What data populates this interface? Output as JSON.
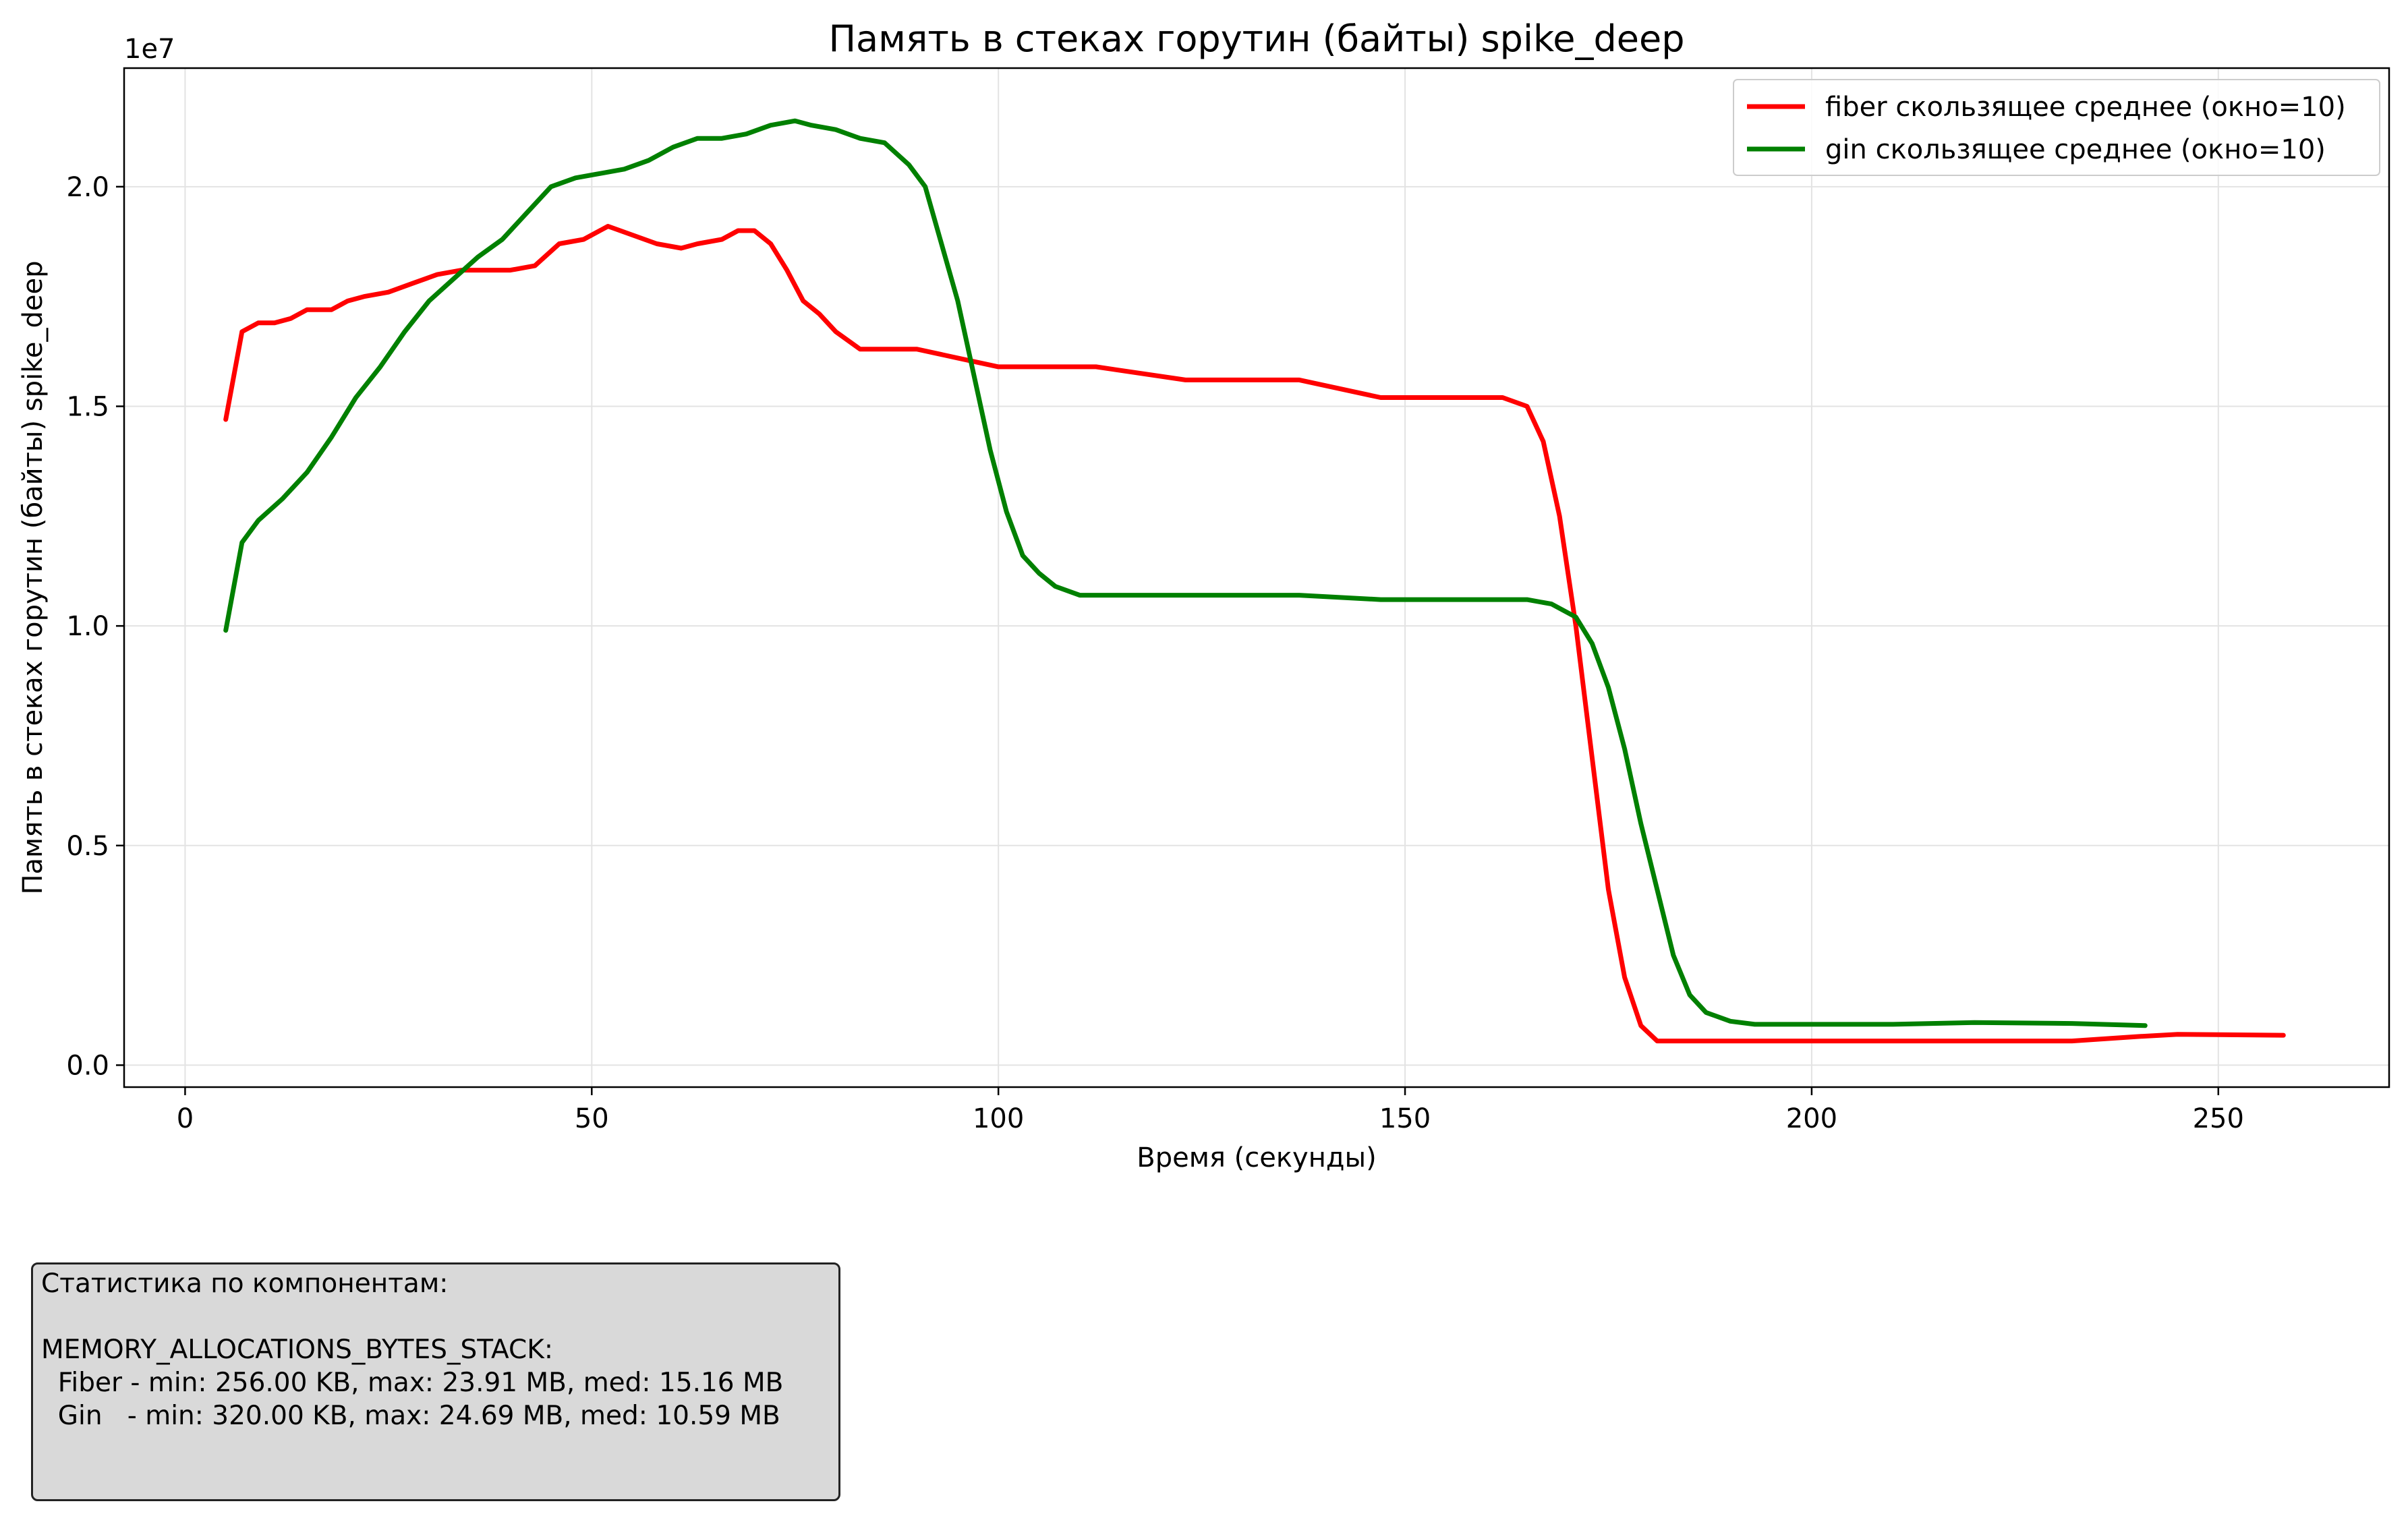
{
  "chart_data": {
    "type": "line",
    "title": "Память в стеках горутин (байты) spike_deep",
    "xlabel": "Время (секунды)",
    "ylabel": "Память в стеках горутин (байты) spike_deep",
    "y_offset_label": "1e7",
    "xlim": [
      -7.5,
      271
    ],
    "ylim": [
      -0.05,
      2.27
    ],
    "y_scale_factor": 10000000,
    "xticks": [
      0,
      50,
      100,
      150,
      200,
      250
    ],
    "xtick_labels": [
      "0",
      "50",
      "100",
      "150",
      "200",
      "250"
    ],
    "yticks": [
      0.0,
      0.5,
      1.0,
      1.5,
      2.0
    ],
    "ytick_labels": [
      "0.0",
      "0.5",
      "1.0",
      "1.5",
      "2.0"
    ],
    "grid": true,
    "legend_position": "top-right",
    "series": [
      {
        "name": "fiber скользящее среднее (окно=10)",
        "color": "#ff0000",
        "points": [
          [
            5,
            1.47
          ],
          [
            7,
            1.67
          ],
          [
            9,
            1.69
          ],
          [
            11,
            1.69
          ],
          [
            13,
            1.7
          ],
          [
            15,
            1.72
          ],
          [
            18,
            1.72
          ],
          [
            20,
            1.74
          ],
          [
            22,
            1.75
          ],
          [
            25,
            1.76
          ],
          [
            28,
            1.78
          ],
          [
            31,
            1.8
          ],
          [
            34,
            1.81
          ],
          [
            37,
            1.81
          ],
          [
            40,
            1.81
          ],
          [
            43,
            1.82
          ],
          [
            46,
            1.87
          ],
          [
            49,
            1.88
          ],
          [
            52,
            1.91
          ],
          [
            55,
            1.89
          ],
          [
            58,
            1.87
          ],
          [
            61,
            1.86
          ],
          [
            63,
            1.87
          ],
          [
            66,
            1.88
          ],
          [
            68,
            1.9
          ],
          [
            70,
            1.9
          ],
          [
            72,
            1.87
          ],
          [
            74,
            1.81
          ],
          [
            76,
            1.74
          ],
          [
            78,
            1.71
          ],
          [
            80,
            1.67
          ],
          [
            83,
            1.63
          ],
          [
            90,
            1.63
          ],
          [
            95,
            1.61
          ],
          [
            100,
            1.59
          ],
          [
            112,
            1.59
          ],
          [
            123,
            1.56
          ],
          [
            137,
            1.56
          ],
          [
            147,
            1.52
          ],
          [
            162,
            1.52
          ],
          [
            165,
            1.5
          ],
          [
            167,
            1.42
          ],
          [
            169,
            1.25
          ],
          [
            171,
            1.0
          ],
          [
            173,
            0.7
          ],
          [
            175,
            0.4
          ],
          [
            177,
            0.2
          ],
          [
            179,
            0.09
          ],
          [
            181,
            0.055
          ],
          [
            185,
            0.055
          ],
          [
            210,
            0.055
          ],
          [
            232,
            0.055
          ],
          [
            240,
            0.065
          ],
          [
            245,
            0.07
          ],
          [
            258,
            0.068
          ]
        ]
      },
      {
        "name": "gin скользящее среднее (окно=10)",
        "color": "#008000",
        "points": [
          [
            5,
            0.99
          ],
          [
            7,
            1.19
          ],
          [
            9,
            1.24
          ],
          [
            12,
            1.29
          ],
          [
            15,
            1.35
          ],
          [
            18,
            1.43
          ],
          [
            21,
            1.52
          ],
          [
            24,
            1.59
          ],
          [
            27,
            1.67
          ],
          [
            30,
            1.74
          ],
          [
            33,
            1.79
          ],
          [
            36,
            1.84
          ],
          [
            39,
            1.88
          ],
          [
            42,
            1.94
          ],
          [
            45,
            2.0
          ],
          [
            48,
            2.02
          ],
          [
            51,
            2.03
          ],
          [
            54,
            2.04
          ],
          [
            57,
            2.06
          ],
          [
            60,
            2.09
          ],
          [
            63,
            2.11
          ],
          [
            66,
            2.11
          ],
          [
            69,
            2.12
          ],
          [
            72,
            2.14
          ],
          [
            75,
            2.15
          ],
          [
            77,
            2.14
          ],
          [
            80,
            2.13
          ],
          [
            83,
            2.11
          ],
          [
            86,
            2.1
          ],
          [
            89,
            2.05
          ],
          [
            91,
            2.0
          ],
          [
            93,
            1.87
          ],
          [
            95,
            1.74
          ],
          [
            97,
            1.57
          ],
          [
            99,
            1.4
          ],
          [
            101,
            1.26
          ],
          [
            103,
            1.16
          ],
          [
            105,
            1.12
          ],
          [
            107,
            1.09
          ],
          [
            110,
            1.07
          ],
          [
            118,
            1.07
          ],
          [
            137,
            1.07
          ],
          [
            147,
            1.06
          ],
          [
            165,
            1.06
          ],
          [
            168,
            1.05
          ],
          [
            171,
            1.02
          ],
          [
            173,
            0.96
          ],
          [
            175,
            0.86
          ],
          [
            177,
            0.72
          ],
          [
            179,
            0.55
          ],
          [
            181,
            0.4
          ],
          [
            183,
            0.25
          ],
          [
            185,
            0.16
          ],
          [
            187,
            0.12
          ],
          [
            190,
            0.1
          ],
          [
            193,
            0.093
          ],
          [
            200,
            0.093
          ],
          [
            210,
            0.093
          ],
          [
            220,
            0.097
          ],
          [
            232,
            0.095
          ],
          [
            241,
            0.09
          ]
        ]
      }
    ]
  },
  "stats_box": {
    "title": "Статистика по компонентам:",
    "metric": "MEMORY_ALLOCATIONS_BYTES_STACK:",
    "fiber_line": "  Fiber - min: 256.00 KB, max: 23.91 MB, med: 15.16 MB",
    "gin_line": "  Gin   - min: 320.00 KB, max: 24.69 MB, med: 10.59 MB"
  }
}
